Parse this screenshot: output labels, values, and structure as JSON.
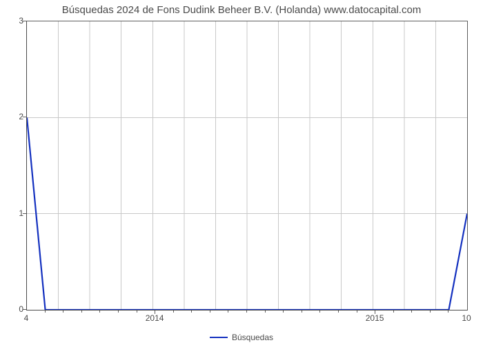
{
  "chart": {
    "type": "line",
    "title": "Búsquedas 2024 de Fons Dudink Beheer B.V. (Holanda) www.datocapital.com",
    "title_fontsize": 15,
    "title_color": "#4a4a4a",
    "background_color": "#ffffff",
    "plot_border_color": "#4a4a4a",
    "grid_color": "#c8c8c8",
    "tick_color": "#5c5c5c",
    "axis_label_color": "#4a4a4a",
    "axis_label_fontsize": 12,
    "x": {
      "domain_min": 0,
      "domain_max": 24,
      "left_edge_label": "4",
      "right_edge_label": "10",
      "major_ticks": [
        {
          "pos": 7,
          "label": "2014"
        },
        {
          "pos": 19,
          "label": "2015"
        }
      ],
      "minor_tick_positions": [
        1,
        2,
        3,
        4,
        5,
        6,
        8,
        9,
        10,
        11,
        12,
        13,
        14,
        15,
        16,
        17,
        18,
        20,
        21,
        22,
        23
      ]
    },
    "y": {
      "domain_min": 0,
      "domain_max": 3,
      "ticks": [
        {
          "pos": 0,
          "label": "0"
        },
        {
          "pos": 1,
          "label": "1"
        },
        {
          "pos": 2,
          "label": "2"
        },
        {
          "pos": 3,
          "label": "3"
        }
      ],
      "vgrid_count": 14
    },
    "series": {
      "name": "Búsquedas",
      "color": "#1330bf",
      "line_width": 2.2,
      "points": [
        {
          "x": 0,
          "y": 2
        },
        {
          "x": 1,
          "y": 0
        },
        {
          "x": 2,
          "y": 0
        },
        {
          "x": 3,
          "y": 0
        },
        {
          "x": 4,
          "y": 0
        },
        {
          "x": 5,
          "y": 0
        },
        {
          "x": 6,
          "y": 0
        },
        {
          "x": 7,
          "y": 0
        },
        {
          "x": 8,
          "y": 0
        },
        {
          "x": 9,
          "y": 0
        },
        {
          "x": 10,
          "y": 0
        },
        {
          "x": 11,
          "y": 0
        },
        {
          "x": 12,
          "y": 0
        },
        {
          "x": 13,
          "y": 0
        },
        {
          "x": 14,
          "y": 0
        },
        {
          "x": 15,
          "y": 0
        },
        {
          "x": 16,
          "y": 0
        },
        {
          "x": 17,
          "y": 0
        },
        {
          "x": 18,
          "y": 0
        },
        {
          "x": 19,
          "y": 0
        },
        {
          "x": 20,
          "y": 0
        },
        {
          "x": 21,
          "y": 0
        },
        {
          "x": 22,
          "y": 0
        },
        {
          "x": 23,
          "y": 0
        },
        {
          "x": 24,
          "y": 1
        }
      ]
    },
    "legend": {
      "label": "Búsquedas",
      "swatch_color": "#1330bf",
      "position": "bottom-center"
    }
  }
}
